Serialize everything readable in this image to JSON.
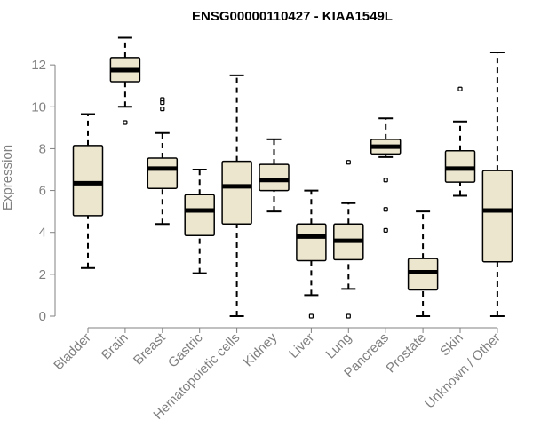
{
  "chart_data": {
    "type": "boxplot",
    "title": "ENSG00000110427 - KIAA1549L",
    "xlabel": "",
    "ylabel": "Expression",
    "ylim": [
      0,
      12.6
    ],
    "yticks": [
      0,
      2,
      4,
      6,
      8,
      10,
      12
    ],
    "grid": false,
    "colors": {
      "box_fill": "#ede6ce",
      "box_stroke": "#000000",
      "median": "#000000",
      "axis": "#808080",
      "text": "#808080"
    },
    "categories": [
      "Bladder",
      "Brain",
      "Breast",
      "Gastric",
      "Hematopoietic cells",
      "Kidney",
      "Liver",
      "Lung",
      "Pancreas",
      "Prostate",
      "Skin",
      "Unknown / Other"
    ],
    "boxes": [
      {
        "name": "Bladder",
        "min": 2.3,
        "q1": 4.8,
        "median": 6.35,
        "q3": 8.15,
        "max": 9.65,
        "outliers": []
      },
      {
        "name": "Brain",
        "min": 10.0,
        "q1": 11.2,
        "median": 11.75,
        "q3": 12.35,
        "max": 13.3,
        "outliers": [
          9.25
        ]
      },
      {
        "name": "Breast",
        "min": 4.4,
        "q1": 6.1,
        "median": 7.05,
        "q3": 7.55,
        "max": 8.75,
        "outliers": [
          10.35,
          10.2,
          9.9
        ]
      },
      {
        "name": "Gastric",
        "min": 2.05,
        "q1": 3.85,
        "median": 5.05,
        "q3": 5.8,
        "max": 7.0,
        "outliers": []
      },
      {
        "name": "Hematopoietic cells",
        "min": 0.0,
        "q1": 4.4,
        "median": 6.2,
        "q3": 7.4,
        "max": 11.5,
        "outliers": []
      },
      {
        "name": "Kidney",
        "min": 5.0,
        "q1": 6.0,
        "median": 6.5,
        "q3": 7.25,
        "max": 8.45,
        "outliers": []
      },
      {
        "name": "Liver",
        "min": 1.0,
        "q1": 2.65,
        "median": 3.8,
        "q3": 4.4,
        "max": 6.0,
        "outliers": [
          0.0
        ]
      },
      {
        "name": "Lung",
        "min": 1.3,
        "q1": 2.7,
        "median": 3.6,
        "q3": 4.4,
        "max": 5.4,
        "outliers": [
          7.35,
          0.0
        ]
      },
      {
        "name": "Pancreas",
        "min": 7.6,
        "q1": 7.75,
        "median": 8.1,
        "q3": 8.45,
        "max": 9.45,
        "outliers": [
          6.5,
          5.1,
          4.1
        ]
      },
      {
        "name": "Prostate",
        "min": 0.0,
        "q1": 1.25,
        "median": 2.1,
        "q3": 2.75,
        "max": 5.0,
        "outliers": []
      },
      {
        "name": "Skin",
        "min": 5.75,
        "q1": 6.4,
        "median": 7.05,
        "q3": 7.9,
        "max": 9.3,
        "outliers": [
          10.85
        ]
      },
      {
        "name": "Unknown / Other",
        "min": 0.0,
        "q1": 2.6,
        "median": 5.05,
        "q3": 6.95,
        "max": 12.6,
        "outliers": []
      }
    ]
  }
}
